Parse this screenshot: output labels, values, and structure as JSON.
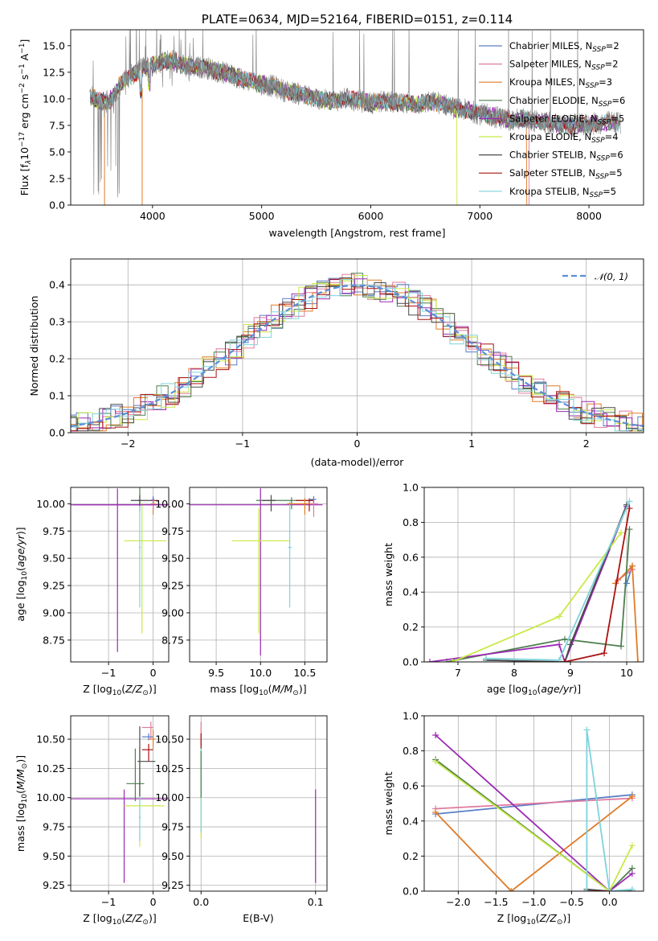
{
  "colors": {
    "chabrier_miles": "#5b7fc7",
    "salpeter_miles": "#e07a9f",
    "kroupa_miles": "#e07b26",
    "chabrier_elodie": "#4f7f4f",
    "salpeter_elodie": "#9b2ab3",
    "kroupa_elodie": "#c8ea47",
    "chabrier_stelib": "#4a4a4a",
    "salpeter_stelib": "#aa1111",
    "kroupa_stelib": "#7ed3dc",
    "data": "#808080",
    "normal": "#5b8fd8"
  },
  "chart_data": [
    {
      "id": "spectrum",
      "type": "line",
      "title": "PLATE=0634, MJD=52164, FIBERID=0151, z=0.114",
      "xlabel": "wavelength [Angstrom, rest frame]",
      "ylabel_main": "Flux [f",
      "ylabel_sub": "λ",
      "ylabel_rest": "10",
      "ylabel_exp": "−17",
      "ylabel_tail": " erg cm",
      "ylabel_tail_exp": "−2",
      "ylabel_tail2": " s",
      "ylabel_tail2_exp": "−1",
      "ylabel_tail3": " A",
      "ylabel_tail3_exp": "−1",
      "ylabel_close": "]",
      "xlim": [
        3250,
        8500
      ],
      "ylim": [
        0,
        16.5
      ],
      "xticks": [
        "4000",
        "5000",
        "6000",
        "7000",
        "8000"
      ],
      "xtick_values": [
        4000,
        5000,
        6000,
        7000,
        8000
      ],
      "yticks": [
        "0.0",
        "2.5",
        "5.0",
        "7.5",
        "10.0",
        "12.5",
        "15.0"
      ],
      "ytick_values": [
        0,
        2.5,
        5,
        7.5,
        10,
        12.5,
        15
      ],
      "continuum": {
        "x": [
          3420,
          3500,
          3600,
          3700,
          3800,
          3900,
          4000,
          4100,
          4200,
          4300,
          4400,
          4500,
          4600,
          4700,
          4800,
          4900,
          5000,
          5100,
          5200,
          5300,
          5400,
          5500,
          5600,
          5700,
          5800,
          5900,
          6000,
          6100,
          6200,
          6300,
          6400,
          6500,
          6600,
          6700,
          6800,
          6900,
          7000,
          7100,
          7200,
          7300,
          7400,
          7500,
          7600,
          7700,
          7800,
          7900,
          8000,
          8100,
          8200,
          8300
        ],
        "y": [
          10.3,
          9.8,
          9.7,
          11.3,
          12.2,
          12.8,
          13.2,
          13.6,
          13.5,
          13.1,
          13.0,
          12.9,
          12.6,
          12.3,
          12.0,
          11.6,
          11.4,
          11.2,
          10.8,
          10.6,
          10.3,
          10.1,
          9.8,
          9.9,
          10.0,
          9.8,
          9.6,
          9.7,
          9.7,
          9.6,
          9.5,
          9.6,
          9.7,
          9.4,
          9.0,
          8.9,
          8.6,
          8.4,
          8.2,
          8.0,
          8.1,
          7.9,
          7.8,
          7.6,
          7.5,
          7.5,
          7.6,
          7.7,
          7.8,
          7.7
        ]
      },
      "legend": [
        {
          "base": "Chabrier MILES, N",
          "sub": "SSP",
          "tail": "=2"
        },
        {
          "base": "Salpeter MILES, N",
          "sub": "SSP",
          "tail": "=2"
        },
        {
          "base": "Kroupa MILES, N",
          "sub": "SSP",
          "tail": "=3"
        },
        {
          "base": "Chabrier ELODIE, N",
          "sub": "SSP",
          "tail": "=6"
        },
        {
          "base": "Salpeter ELODIE, N",
          "sub": "SSP",
          "tail": "=5"
        },
        {
          "base": "Kroupa ELODIE, N",
          "sub": "SSP",
          "tail": "=4"
        },
        {
          "base": "Chabrier STELIB, N",
          "sub": "SSP",
          "tail": "=6"
        },
        {
          "base": "Salpeter STELIB, N",
          "sub": "SSP",
          "tail": "=5"
        },
        {
          "base": "Kroupa STELIB, N",
          "sub": "SSP",
          "tail": "=5"
        }
      ],
      "legend_position": "upper-right"
    },
    {
      "id": "residuals",
      "type": "histogram",
      "xlabel": "(data-model)/error",
      "ylabel": "Normed distribution",
      "xlim": [
        -2.5,
        2.5
      ],
      "ylim": [
        0,
        0.47
      ],
      "xticks": [
        "−2",
        "−1",
        "0",
        "1",
        "2"
      ],
      "xtick_values": [
        -2,
        -1,
        0,
        1,
        2
      ],
      "yticks": [
        "0.0",
        "0.1",
        "0.2",
        "0.3",
        "0.4"
      ],
      "ytick_values": [
        0,
        0.1,
        0.2,
        0.3,
        0.4
      ],
      "legend": [
        "𝒩(0, 1)"
      ],
      "legend_position": "upper-right",
      "grid": true
    },
    {
      "id": "age-vs-Z",
      "type": "errorbar",
      "xlabel": "Z [log",
      "xlabel_sub": "10",
      "xlabel_rest": "(Z/Z",
      "xlabel_sub2": "⊙",
      "xlabel_close": ")]",
      "ylabel": "age  [log",
      "ylabel_sub": "10",
      "ylabel_rest": "(age/yr)]",
      "xlim": [
        -1.85,
        0.35
      ],
      "ylim": [
        8.55,
        10.15
      ],
      "xticks": [
        "−1",
        "0"
      ],
      "xtick_values": [
        -1,
        0
      ],
      "yticks": [
        "8.75",
        "9.00",
        "9.25",
        "9.50",
        "9.75",
        "10.00"
      ],
      "ytick_values": [
        8.75,
        9.0,
        9.25,
        9.5,
        9.75,
        10.0
      ]
    },
    {
      "id": "age-vs-mass",
      "type": "errorbar",
      "xlabel": "mass [log",
      "xlabel_sub": "10",
      "xlabel_rest": "(M/M",
      "xlabel_sub2": "⊙",
      "xlabel_close": ")]",
      "xlim": [
        9.2,
        10.75
      ],
      "ylim": [
        8.55,
        10.15
      ],
      "xticks": [
        "9.5",
        "10.0",
        "10.5"
      ],
      "xtick_values": [
        9.5,
        10.0,
        10.5
      ],
      "yticks": [
        "8.75",
        "9.00",
        "9.25",
        "9.50",
        "9.75",
        "10.00"
      ],
      "ytick_values": [
        8.75,
        9.0,
        9.25,
        9.5,
        9.75,
        10.0
      ]
    },
    {
      "id": "mass-weight-vs-age",
      "type": "line",
      "xlabel": "age  [log",
      "xlabel_sub": "10",
      "xlabel_rest": "(age/yr)]",
      "ylabel": "mass weight",
      "xlim": [
        6.4,
        10.3
      ],
      "ylim": [
        0,
        1
      ],
      "xticks": [
        "7",
        "8",
        "9",
        "10"
      ],
      "xtick_values": [
        7,
        8,
        9,
        10
      ],
      "yticks": [
        "0.0",
        "0.2",
        "0.4",
        "0.6",
        "0.8",
        "1.0"
      ],
      "ytick_values": [
        0,
        0.2,
        0.4,
        0.6,
        0.8,
        1.0
      ],
      "series": [
        {
          "key": "chabrier_miles",
          "x": [
            10.0,
            10.1
          ],
          "y": [
            0.45,
            0.55
          ]
        },
        {
          "key": "salpeter_miles",
          "x": [
            9.85,
            10.1
          ],
          "y": [
            0.47,
            0.53
          ]
        },
        {
          "key": "kroupa_miles",
          "x": [
            9.8,
            10.1,
            10.2
          ],
          "y": [
            0.45,
            0.55,
            0.0
          ]
        },
        {
          "key": "chabrier_elodie",
          "x": [
            6.8,
            8.9,
            9.9,
            10.05
          ],
          "y": [
            0.0,
            0.13,
            0.09,
            0.76
          ]
        },
        {
          "key": "salpeter_elodie",
          "x": [
            6.5,
            8.8,
            8.9,
            10.0
          ],
          "y": [
            0.0,
            0.1,
            0.0,
            0.89
          ]
        },
        {
          "key": "kroupa_elodie",
          "x": [
            6.9,
            8.8,
            9.9
          ],
          "y": [
            0.0,
            0.26,
            0.74
          ]
        },
        {
          "key": "chabrier_stelib",
          "x": [
            7.5,
            8.9,
            9.0,
            10.0
          ],
          "y": [
            0.01,
            0.0,
            0.1,
            0.9
          ]
        },
        {
          "key": "salpeter_stelib",
          "x": [
            8.9,
            9.6,
            10.05
          ],
          "y": [
            0.0,
            0.05,
            0.88
          ]
        },
        {
          "key": "kroupa_stelib",
          "x": [
            7.5,
            8.8,
            10.05
          ],
          "y": [
            0.02,
            0.01,
            0.92
          ]
        }
      ],
      "grid": true
    },
    {
      "id": "mass-vs-Z",
      "type": "errorbar",
      "xlabel": "Z [log",
      "xlabel_sub": "10",
      "xlabel_rest": "(Z/Z",
      "xlabel_sub2": "⊙",
      "xlabel_close": ")]",
      "ylabel": "mass [log",
      "ylabel_sub": "10",
      "ylabel_rest": "(M/M",
      "ylabel_sub2": "⊙",
      "ylabel_close": ")]",
      "xlim": [
        -1.85,
        0.35
      ],
      "ylim": [
        9.2,
        10.7
      ],
      "xticks": [
        "−1",
        "0"
      ],
      "xtick_values": [
        -1,
        0
      ],
      "yticks": [
        "9.25",
        "9.50",
        "9.75",
        "10.00",
        "10.25",
        "10.50"
      ],
      "ytick_values": [
        9.25,
        9.5,
        9.75,
        10.0,
        10.25,
        10.5
      ]
    },
    {
      "id": "mass-vs-ebv",
      "type": "errorbar",
      "xlabel": "E(B-V)",
      "xlim": [
        -0.01,
        0.11
      ],
      "ylim": [
        9.2,
        10.7
      ],
      "xticks": [
        "0.0",
        "0.1"
      ],
      "xtick_values": [
        0.0,
        0.1
      ],
      "yticks": [
        "9.25",
        "9.50",
        "9.75",
        "10.00",
        "10.25",
        "10.50"
      ],
      "ytick_values": [
        9.25,
        9.5,
        9.75,
        10.0,
        10.25,
        10.5
      ]
    },
    {
      "id": "mass-weight-vs-Z",
      "type": "line",
      "xlabel": "Z [log",
      "xlabel_sub": "10",
      "xlabel_rest": "(Z/Z",
      "xlabel_sub2": "⊙",
      "xlabel_close": ")]",
      "ylabel": "mass weight",
      "xlim": [
        -2.45,
        0.45
      ],
      "ylim": [
        0,
        1
      ],
      "xticks": [
        "−2.0",
        "−1.5",
        "−1.0",
        "−0.5",
        "0.0"
      ],
      "xtick_values": [
        -2.0,
        -1.5,
        -1.0,
        -0.5,
        0.0
      ],
      "yticks": [
        "0.0",
        "0.2",
        "0.4",
        "0.6",
        "0.8",
        "1.0"
      ],
      "ytick_values": [
        0,
        0.2,
        0.4,
        0.6,
        0.8,
        1.0
      ],
      "series": [
        {
          "key": "chabrier_miles",
          "x": [
            -2.3,
            0.3
          ],
          "y": [
            0.44,
            0.55
          ]
        },
        {
          "key": "salpeter_miles",
          "x": [
            -2.3,
            0.3
          ],
          "y": [
            0.47,
            0.53
          ]
        },
        {
          "key": "kroupa_miles",
          "x": [
            -2.3,
            -1.3,
            0.3
          ],
          "y": [
            0.45,
            0.0,
            0.54
          ]
        },
        {
          "key": "chabrier_elodie",
          "x": [
            -2.3,
            0.0,
            0.3
          ],
          "y": [
            0.75,
            0.0,
            0.13
          ]
        },
        {
          "key": "salpeter_elodie",
          "x": [
            -2.3,
            0.0,
            0.3
          ],
          "y": [
            0.89,
            0.0,
            0.1
          ]
        },
        {
          "key": "kroupa_elodie",
          "x": [
            -2.3,
            0.0,
            0.3
          ],
          "y": [
            0.74,
            0.0,
            0.26
          ]
        },
        {
          "key": "chabrier_stelib",
          "x": [
            -0.3,
            0.0,
            0.3
          ],
          "y": [
            0.01,
            0.0,
            0.0
          ]
        },
        {
          "key": "salpeter_stelib",
          "x": [
            -0.3,
            0.0
          ],
          "y": [
            0.0,
            0.0
          ]
        },
        {
          "key": "kroupa_stelib",
          "x": [
            -0.3,
            -0.3,
            0.0,
            0.3
          ],
          "y": [
            0.0,
            0.92,
            0.0,
            0.01
          ]
        }
      ],
      "grid": true
    }
  ]
}
